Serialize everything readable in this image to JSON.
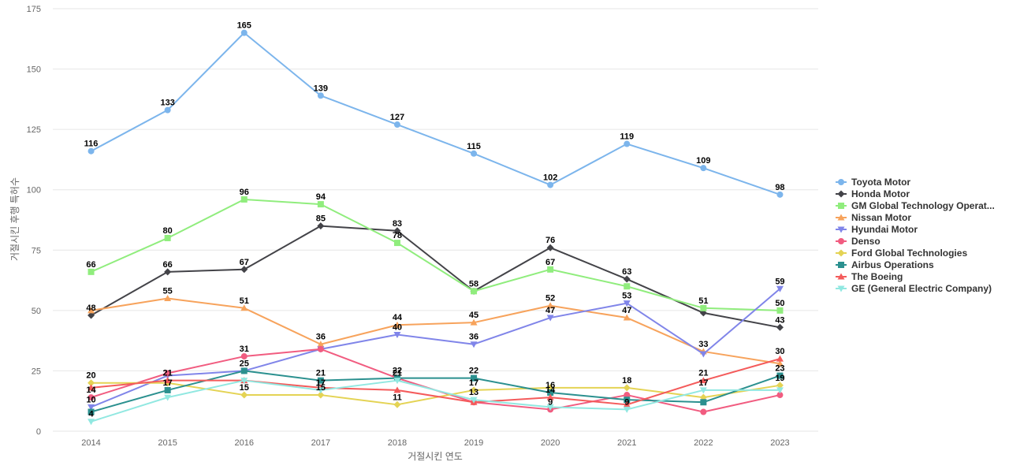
{
  "chart_data": {
    "type": "line",
    "xlabel": "거절시킨 연도",
    "ylabel": "거절시킨 후행 특허수",
    "ylim": [
      0,
      175
    ],
    "yticks": [
      0,
      25,
      50,
      75,
      100,
      125,
      150,
      175
    ],
    "x": [
      "2014",
      "2015",
      "2016",
      "2017",
      "2018",
      "2019",
      "2020",
      "2021",
      "2022",
      "2023"
    ],
    "grid": true,
    "legend_position": "right",
    "series": [
      {
        "name": "Toyota Motor",
        "color": "#7cb5ec",
        "marker": "circle",
        "values": [
          116,
          133,
          165,
          139,
          127,
          115,
          102,
          119,
          109,
          98
        ]
      },
      {
        "name": "Honda Motor",
        "color": "#434348",
        "marker": "diamond",
        "values": [
          48,
          66,
          67,
          85,
          83,
          58,
          76,
          63,
          49,
          43
        ]
      },
      {
        "name": "GM Global Technology Operat...",
        "color": "#90ed7d",
        "marker": "square",
        "values": [
          66,
          80,
          96,
          94,
          78,
          58,
          67,
          60,
          51,
          50
        ]
      },
      {
        "name": "Nissan Motor",
        "color": "#f7a35c",
        "marker": "triangle",
        "values": [
          50,
          55,
          51,
          36,
          44,
          45,
          52,
          47,
          33,
          28
        ]
      },
      {
        "name": "Hyundai Motor",
        "color": "#8085e9",
        "marker": "triangle-down",
        "values": [
          10,
          23,
          25,
          34,
          40,
          36,
          47,
          53,
          32,
          59
        ]
      },
      {
        "name": "Denso",
        "color": "#f15c80",
        "marker": "circle",
        "values": [
          14,
          24,
          31,
          34,
          22,
          12,
          9,
          15,
          8,
          15
        ]
      },
      {
        "name": "Ford Global Technologies",
        "color": "#e4d354",
        "marker": "diamond",
        "values": [
          20,
          20,
          15,
          15,
          11,
          17,
          18,
          18,
          14,
          19
        ]
      },
      {
        "name": "Airbus Operations",
        "color": "#2b908f",
        "marker": "square",
        "values": [
          8,
          17,
          25,
          21,
          22,
          22,
          16,
          13,
          12,
          23
        ]
      },
      {
        "name": "The Boeing",
        "color": "#f45b5b",
        "marker": "triangle",
        "values": [
          18,
          21,
          21,
          18,
          17,
          12,
          14,
          11,
          21,
          30
        ]
      },
      {
        "name": "GE (General Electric Company)",
        "color": "#91e8e1",
        "marker": "triangle-down",
        "values": [
          4,
          14,
          21,
          17,
          21,
          13,
          10,
          9,
          17,
          17
        ]
      }
    ],
    "data_labels": [
      {
        "series": 0,
        "points": [
          0,
          1,
          2,
          3,
          4,
          5,
          6,
          7,
          8,
          9
        ]
      },
      {
        "series": 1,
        "points": [
          0,
          1,
          2,
          3,
          4,
          6,
          7,
          9
        ]
      },
      {
        "series": 2,
        "points": [
          0,
          1,
          2,
          3,
          4,
          5,
          6,
          8,
          9
        ]
      },
      {
        "series": 3,
        "points": [
          1,
          2,
          3,
          4,
          5,
          6,
          7,
          8
        ]
      },
      {
        "series": 4,
        "points": [
          0,
          4,
          5,
          6,
          7,
          9
        ]
      },
      {
        "series": 5,
        "points": [
          0,
          2,
          6
        ]
      },
      {
        "series": 6,
        "points": [
          0,
          2,
          3,
          4,
          5,
          7,
          9
        ]
      },
      {
        "series": 7,
        "points": [
          1,
          2,
          3,
          4,
          5,
          6,
          9
        ]
      },
      {
        "series": 8,
        "points": [
          1,
          6,
          8,
          9
        ]
      },
      {
        "series": 9,
        "points": [
          0,
          3,
          4,
          5,
          7,
          8
        ]
      }
    ]
  }
}
